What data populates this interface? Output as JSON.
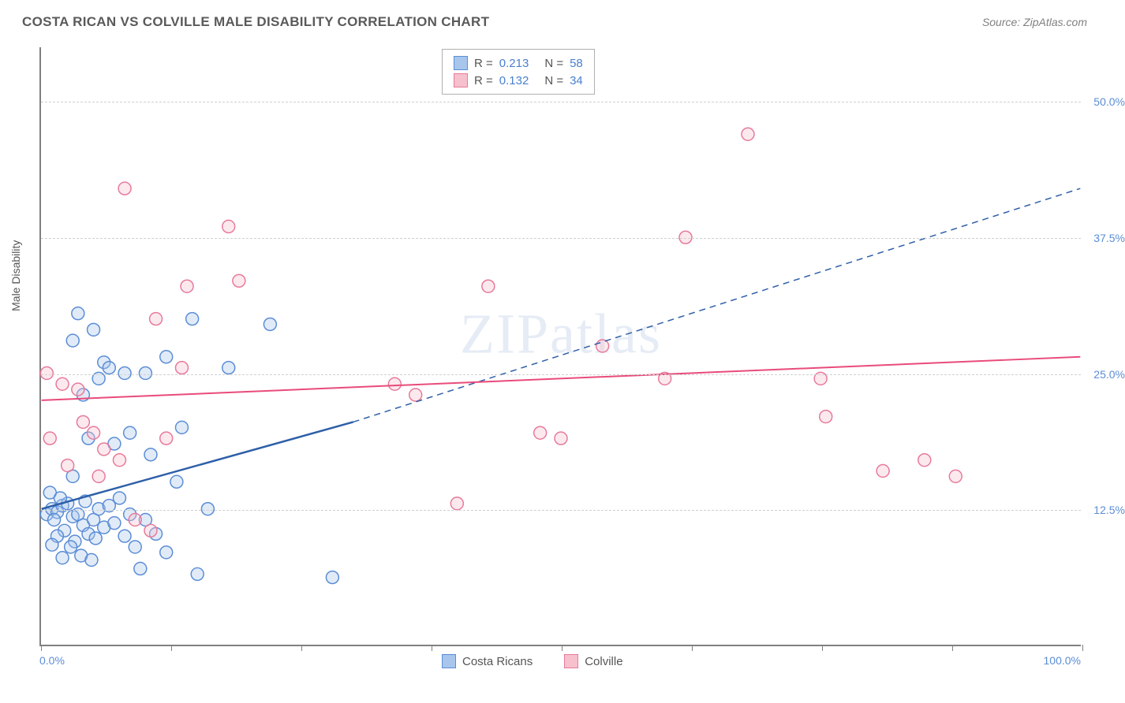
{
  "title": "COSTA RICAN VS COLVILLE MALE DISABILITY CORRELATION CHART",
  "source": "Source: ZipAtlas.com",
  "watermark": "ZIPatlas",
  "y_axis_title": "Male Disability",
  "chart": {
    "type": "scatter",
    "xlim": [
      0,
      100
    ],
    "ylim": [
      0,
      55
    ],
    "x_ticks": [
      0,
      12.5,
      25,
      37.5,
      50,
      62.5,
      75,
      87.5,
      100
    ],
    "x_tick_labels_shown": {
      "0": "0.0%",
      "100": "100.0%"
    },
    "y_gridlines": [
      12.5,
      25.0,
      37.5,
      50.0
    ],
    "y_labels": [
      "12.5%",
      "25.0%",
      "37.5%",
      "50.0%"
    ],
    "grid_color": "#d0d0d0",
    "axis_color": "#808080",
    "label_color": "#5b8dd6",
    "label_fontsize": 14,
    "background_color": "#ffffff",
    "marker_radius": 8,
    "marker_stroke_width": 1.5,
    "marker_fill_opacity": 0.35,
    "series": [
      {
        "name": "Costa Ricans",
        "color_fill": "#a8c6ec",
        "color_stroke": "#5b8dd6",
        "points": [
          [
            0.5,
            12.0
          ],
          [
            1.0,
            12.5
          ],
          [
            1.5,
            12.2
          ],
          [
            2.0,
            12.8
          ],
          [
            1.2,
            11.5
          ],
          [
            2.5,
            13.0
          ],
          [
            3.0,
            11.8
          ],
          [
            1.8,
            13.5
          ],
          [
            0.8,
            14.0
          ],
          [
            3.5,
            12.0
          ],
          [
            2.2,
            10.5
          ],
          [
            4.0,
            11.0
          ],
          [
            1.5,
            10.0
          ],
          [
            3.2,
            9.5
          ],
          [
            4.5,
            10.2
          ],
          [
            2.8,
            9.0
          ],
          [
            5.0,
            11.5
          ],
          [
            1.0,
            9.2
          ],
          [
            4.2,
            13.2
          ],
          [
            5.5,
            12.5
          ],
          [
            3.8,
            8.2
          ],
          [
            6.0,
            10.8
          ],
          [
            2.0,
            8.0
          ],
          [
            5.2,
            9.8
          ],
          [
            7.0,
            11.2
          ],
          [
            6.5,
            12.8
          ],
          [
            8.0,
            10.0
          ],
          [
            4.8,
            7.8
          ],
          [
            9.0,
            9.0
          ],
          [
            10.0,
            11.5
          ],
          [
            7.5,
            13.5
          ],
          [
            11.0,
            10.2
          ],
          [
            8.5,
            12.0
          ],
          [
            12.0,
            8.5
          ],
          [
            13.5,
            20.0
          ],
          [
            10.5,
            17.5
          ],
          [
            9.5,
            7.0
          ],
          [
            15.0,
            6.5
          ],
          [
            3.0,
            28.0
          ],
          [
            5.0,
            29.0
          ],
          [
            3.5,
            30.5
          ],
          [
            6.0,
            26.0
          ],
          [
            5.5,
            24.5
          ],
          [
            4.0,
            23.0
          ],
          [
            6.5,
            25.5
          ],
          [
            8.0,
            25.0
          ],
          [
            12.0,
            26.5
          ],
          [
            14.5,
            30.0
          ],
          [
            10.0,
            25.0
          ],
          [
            18.0,
            25.5
          ],
          [
            22.0,
            29.5
          ],
          [
            4.5,
            19.0
          ],
          [
            7.0,
            18.5
          ],
          [
            8.5,
            19.5
          ],
          [
            13.0,
            15.0
          ],
          [
            16.0,
            12.5
          ],
          [
            28.0,
            6.2
          ],
          [
            3.0,
            15.5
          ]
        ],
        "trend_solid": {
          "x1": 0,
          "y1": 12.5,
          "x2": 30,
          "y2": 20.5
        },
        "trend_dash": {
          "x1": 30,
          "y1": 20.5,
          "x2": 100,
          "y2": 42.0
        },
        "trend_color": "#2e5fa8",
        "trend_width": 2.5
      },
      {
        "name": "Colville",
        "color_fill": "#f6c0cd",
        "color_stroke": "#e77a9a",
        "points": [
          [
            0.5,
            25.0
          ],
          [
            2.0,
            24.0
          ],
          [
            3.5,
            23.5
          ],
          [
            5.0,
            19.5
          ],
          [
            6.0,
            18.0
          ],
          [
            4.0,
            20.5
          ],
          [
            7.5,
            17.0
          ],
          [
            5.5,
            15.5
          ],
          [
            9.0,
            11.5
          ],
          [
            10.5,
            10.5
          ],
          [
            12.0,
            19.0
          ],
          [
            14.0,
            33.0
          ],
          [
            11.0,
            30.0
          ],
          [
            8.0,
            42.0
          ],
          [
            19.0,
            33.5
          ],
          [
            18.0,
            38.5
          ],
          [
            34.0,
            24.0
          ],
          [
            36.0,
            23.0
          ],
          [
            40.0,
            13.0
          ],
          [
            43.0,
            33.0
          ],
          [
            48.0,
            19.5
          ],
          [
            50.0,
            19.0
          ],
          [
            54.0,
            27.5
          ],
          [
            62.0,
            37.5
          ],
          [
            60.0,
            24.5
          ],
          [
            68.0,
            47.0
          ],
          [
            75.0,
            24.5
          ],
          [
            75.5,
            21.0
          ],
          [
            81.0,
            16.0
          ],
          [
            85.0,
            17.0
          ],
          [
            88.0,
            15.5
          ],
          [
            13.5,
            25.5
          ],
          [
            0.8,
            19.0
          ],
          [
            2.5,
            16.5
          ]
        ],
        "trend_solid": {
          "x1": 0,
          "y1": 22.5,
          "x2": 100,
          "y2": 26.5
        },
        "trend_color": "#e94b7a",
        "trend_width": 2
      }
    ]
  },
  "legend_top": [
    {
      "swatch_fill": "#a8c6ec",
      "swatch_stroke": "#5b8dd6",
      "r": "0.213",
      "n": "58"
    },
    {
      "swatch_fill": "#f6c0cd",
      "swatch_stroke": "#e77a9a",
      "r": "0.132",
      "n": "34"
    }
  ],
  "legend_bottom": [
    {
      "swatch_fill": "#a8c6ec",
      "swatch_stroke": "#5b8dd6",
      "label": "Costa Ricans"
    },
    {
      "swatch_fill": "#f6c0cd",
      "swatch_stroke": "#e77a9a",
      "label": "Colville"
    }
  ]
}
